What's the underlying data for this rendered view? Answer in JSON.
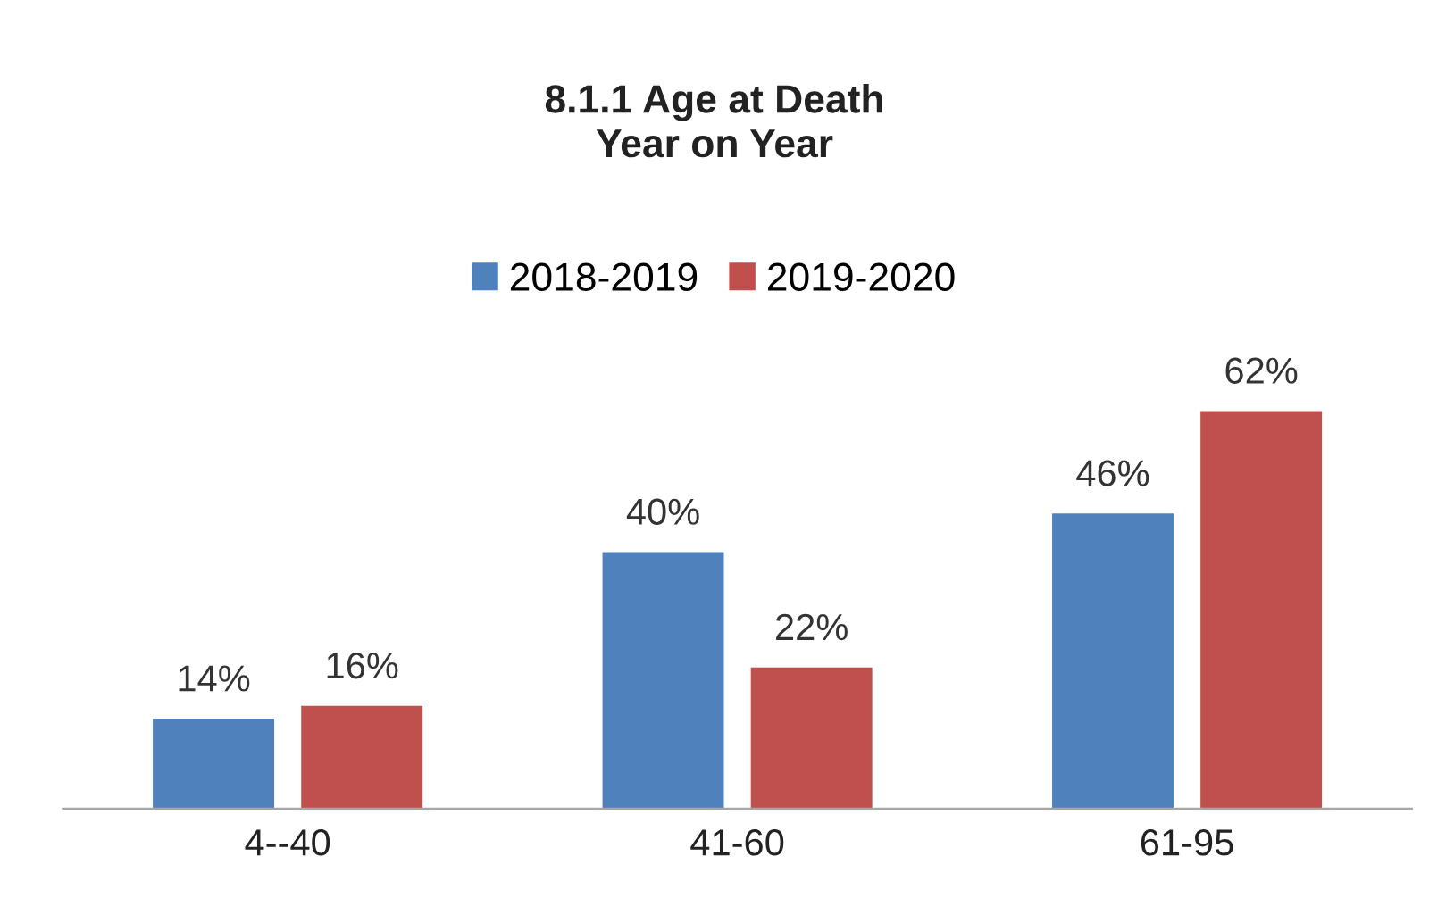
{
  "chart_data": {
    "type": "bar",
    "title": "8.1.1 Age at Death\nYear on Year",
    "categories": [
      "4--40",
      "41-60",
      "61-95"
    ],
    "series": [
      {
        "name": "2018-2019",
        "color": "#4f81bd",
        "values": [
          14,
          40,
          46
        ],
        "value_labels": [
          "14%",
          "40%",
          "46%"
        ]
      },
      {
        "name": "2019-2020",
        "color": "#c0504d",
        "values": [
          16,
          22,
          62
        ],
        "value_labels": [
          "16%",
          "22%",
          "62%"
        ]
      }
    ],
    "legend": "top",
    "grid": false
  }
}
